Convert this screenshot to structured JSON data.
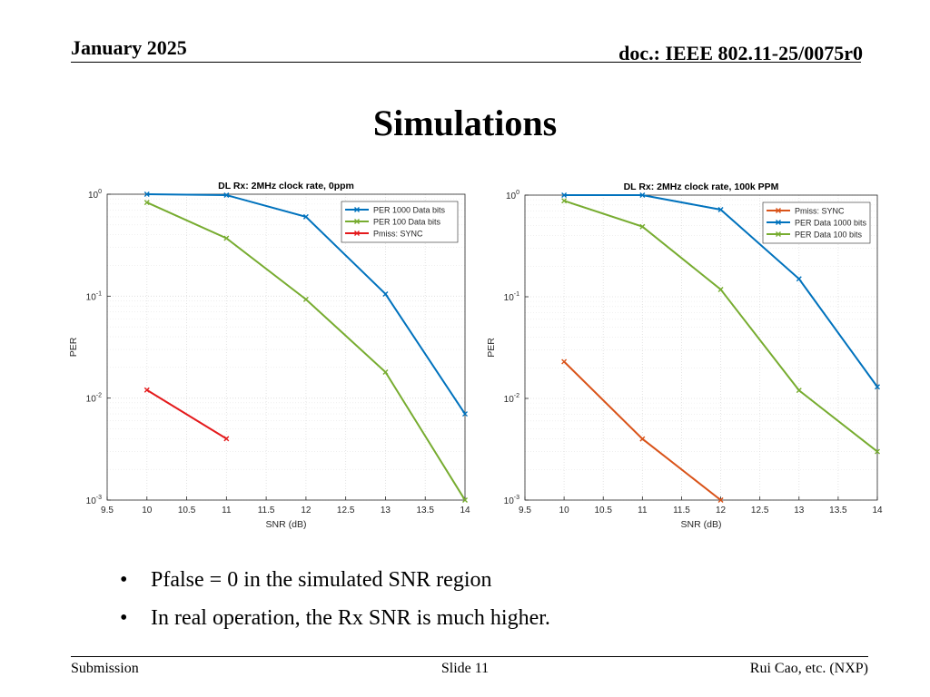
{
  "header": {
    "date": "January 2025",
    "doc": "doc.: IEEE 802.11-25/0075r0"
  },
  "title": "Simulations",
  "bullets": [
    "Pfalse = 0 in the simulated SNR region",
    "In real operation, the Rx SNR is much higher."
  ],
  "footer": {
    "left": "Submission",
    "center": "Slide 11",
    "right": "Rui Cao, etc. (NXP)"
  },
  "chart_data": [
    {
      "type": "line",
      "title": "DL Rx: 2MHz clock rate, 0ppm",
      "xlabel": "SNR (dB)",
      "ylabel": "PER",
      "yscale": "log",
      "xlim": [
        9.5,
        14
      ],
      "ylim": [
        0.001,
        1
      ],
      "xticks": [
        "9.5",
        "10",
        "10.5",
        "11",
        "11.5",
        "12",
        "12.5",
        "13",
        "13.5",
        "14"
      ],
      "ytick_exponents": [
        "0",
        "-1",
        "-2",
        "-3"
      ],
      "grid": true,
      "legend_position": "top-right",
      "series": [
        {
          "name": "PER 1000 Data bits",
          "color": "#0072BD",
          "x": [
            10,
            11,
            12,
            13,
            14
          ],
          "y": [
            1.0,
            0.98,
            0.6,
            0.105,
            0.007
          ]
        },
        {
          "name": "PER 100 Data bits",
          "color": "#77AC30",
          "x": [
            10,
            11,
            12,
            13,
            14
          ],
          "y": [
            0.83,
            0.37,
            0.093,
            0.018,
            0.001
          ]
        },
        {
          "name": "Pmiss: SYNC",
          "color": "#E41A1C",
          "x": [
            10,
            11
          ],
          "y": [
            0.012,
            0.004
          ]
        }
      ]
    },
    {
      "type": "line",
      "title": "DL Rx: 2MHz clock rate, 100k PPM",
      "xlabel": "SNR (dB)",
      "ylabel": "PER",
      "yscale": "log",
      "xlim": [
        9.5,
        14
      ],
      "ylim": [
        0.001,
        1
      ],
      "xticks": [
        "9.5",
        "10",
        "10.5",
        "11",
        "11.5",
        "12",
        "12.5",
        "13",
        "13.5",
        "14"
      ],
      "ytick_exponents": [
        "0",
        "-1",
        "-2",
        "-3"
      ],
      "grid": true,
      "legend_position": "top-right",
      "series": [
        {
          "name": "Pmiss: SYNC",
          "color": "#D95319",
          "x": [
            10,
            11,
            12
          ],
          "y": [
            0.023,
            0.004,
            0.001
          ]
        },
        {
          "name": "PER Data 1000 bits",
          "color": "#0072BD",
          "x": [
            10,
            11,
            12,
            13,
            14
          ],
          "y": [
            1.0,
            1.0,
            0.72,
            0.15,
            0.013
          ]
        },
        {
          "name": "PER Data 100 bits",
          "color": "#77AC30",
          "x": [
            10,
            11,
            12,
            13,
            14
          ],
          "y": [
            0.88,
            0.49,
            0.118,
            0.012,
            0.003
          ]
        }
      ]
    }
  ]
}
